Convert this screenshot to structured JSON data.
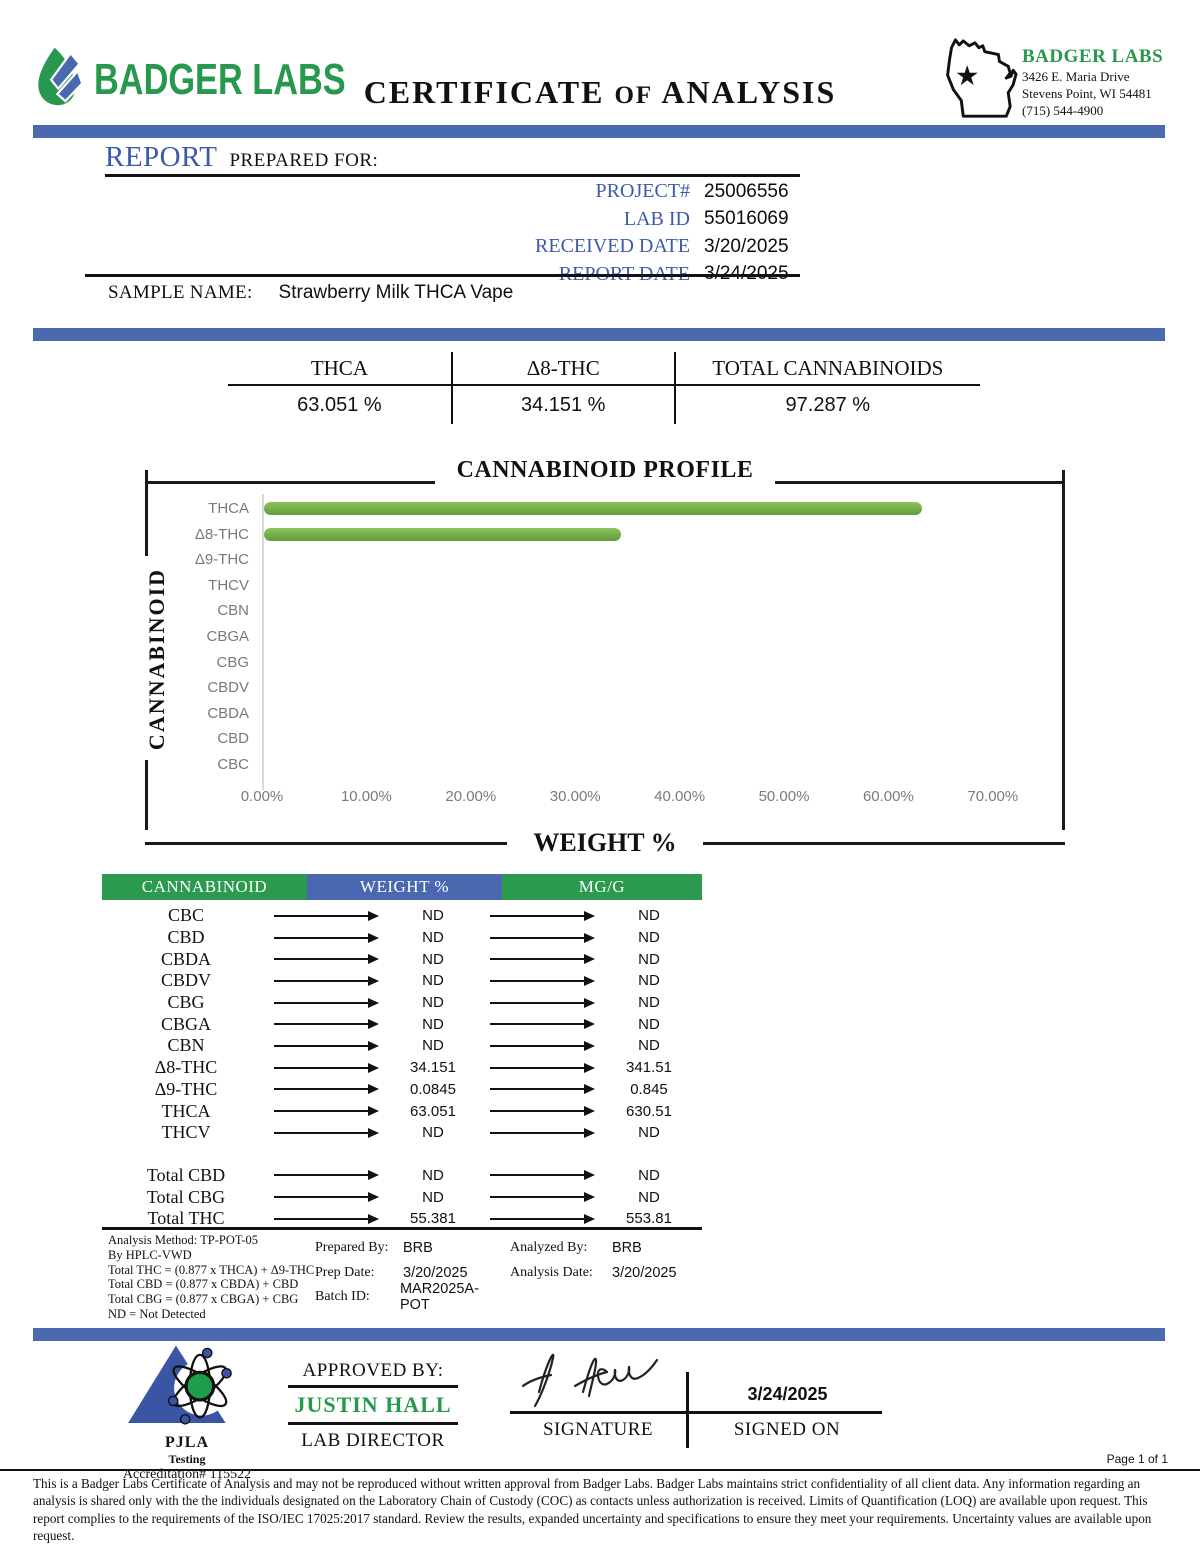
{
  "header": {
    "brand": "BADGER LABS",
    "title_words": [
      "CERTIFICATE",
      "OF",
      "ANALYSIS"
    ],
    "lab_card": {
      "name": "BADGER LABS",
      "address_line1": "3426 E. Maria Drive",
      "address_line2": "Stevens Point, WI 54481",
      "phone": "(715) 544-4900"
    }
  },
  "report": {
    "heading_primary": "REPORT",
    "heading_secondary": "PREPARED FOR:",
    "fields": [
      {
        "label": "PROJECT#",
        "value": "25006556"
      },
      {
        "label": "LAB ID",
        "value": "55016069"
      },
      {
        "label": "RECEIVED DATE",
        "value": "3/20/2025"
      },
      {
        "label": "REPORT DATE",
        "value": "3/24/2025"
      }
    ],
    "sample_label": "SAMPLE NAME:",
    "sample_name": "Strawberry Milk THCA Vape"
  },
  "summary": [
    {
      "label": "THCA",
      "value": "63.051 %"
    },
    {
      "label": "Δ8-THC",
      "value": "34.151 %"
    },
    {
      "label": "TOTAL CANNABINOIDS",
      "value": "97.287 %"
    }
  ],
  "chart": {
    "title": "CANNABINOID PROFILE",
    "y_axis_label": "CANNABINOID",
    "x_axis_label": "WEIGHT %",
    "x_ticks": [
      "0.00%",
      "10.00%",
      "20.00%",
      "30.00%",
      "40.00%",
      "50.00%",
      "60.00%",
      "70.00%"
    ]
  },
  "chart_data": {
    "type": "bar",
    "orientation": "horizontal",
    "title": "CANNABINOID PROFILE",
    "xlabel": "WEIGHT %",
    "ylabel": "CANNABINOID",
    "categories": [
      "THCA",
      "Δ8-THC",
      "Δ9-THC",
      "THCV",
      "CBN",
      "CBGA",
      "CBG",
      "CBDV",
      "CBDA",
      "CBD",
      "CBC"
    ],
    "values": [
      63.051,
      34.151,
      0.0845,
      0,
      0,
      0,
      0,
      0,
      0,
      0,
      0
    ],
    "xlim": [
      0,
      70
    ],
    "grid": false,
    "bar_color": "#72ae47"
  },
  "table": {
    "headers": [
      "CANNABINOID",
      "WEIGHT %",
      "MG/G"
    ],
    "rows": [
      {
        "name": "CBC",
        "weight": "ND",
        "mgg": "ND"
      },
      {
        "name": "CBD",
        "weight": "ND",
        "mgg": "ND"
      },
      {
        "name": "CBDA",
        "weight": "ND",
        "mgg": "ND"
      },
      {
        "name": "CBDV",
        "weight": "ND",
        "mgg": "ND"
      },
      {
        "name": "CBG",
        "weight": "ND",
        "mgg": "ND"
      },
      {
        "name": "CBGA",
        "weight": "ND",
        "mgg": "ND"
      },
      {
        "name": "CBN",
        "weight": "ND",
        "mgg": "ND"
      },
      {
        "name": "Δ8-THC",
        "weight": "34.151",
        "mgg": "341.51"
      },
      {
        "name": "Δ9-THC",
        "weight": "0.0845",
        "mgg": "0.845"
      },
      {
        "name": "THCA",
        "weight": "63.051",
        "mgg": "630.51"
      },
      {
        "name": "THCV",
        "weight": "ND",
        "mgg": "ND"
      }
    ],
    "totals": [
      {
        "name": "Total CBD",
        "weight": "ND",
        "mgg": "ND"
      },
      {
        "name": "Total CBG",
        "weight": "ND",
        "mgg": "ND"
      },
      {
        "name": "Total THC",
        "weight": "55.381",
        "mgg": "553.81"
      }
    ]
  },
  "notes": {
    "method_lines": [
      "Analysis Method: TP-POT-05",
      "By HPLC-VWD",
      "Total THC = (0.877 x  THCA) + Δ9-THC",
      "Total CBD = (0.877 x  CBDA) + CBD",
      "Total CBG = (0.877 x  CBGA) + CBG",
      "ND = Not Detected"
    ],
    "prepared": [
      {
        "label": "Prepared By:",
        "value": "BRB"
      },
      {
        "label": "Prep Date:",
        "value": "3/20/2025"
      },
      {
        "label": "Batch ID:",
        "value": "MAR2025A-POT"
      }
    ],
    "analyzed": [
      {
        "label": "Analyzed By:",
        "value": "BRB"
      },
      {
        "label": "Analysis Date:",
        "value": "3/20/2025"
      }
    ]
  },
  "approval": {
    "approved_by_label": "APPROVED BY:",
    "approver_name": "JUSTIN HALL",
    "approver_title": "LAB DIRECTOR",
    "signature_label": "SIGNATURE",
    "signed_on_label": "SIGNED ON",
    "signed_date": "3/24/2025",
    "accreditation": {
      "org": "PJLA",
      "sub": "Testing",
      "number": "Accreditation# 115522"
    }
  },
  "footer": {
    "page_label": "Page 1 of 1",
    "disclaimer": "This is a Badger Labs Certificate of Analysis and may not be reproduced without written approval from Badger Labs. Badger Labs maintains strict confidentiality of all client data. Any information regarding an analysis is shared only with the the individuals designated on the Laboratory Chain of Custody (COC) as contacts unless authorization is received. Limits of Quantification (LOQ) are available upon request. This report complies to the requirements of the ISO/IEC 17025:2017 standard. Review the results, expanded uncertainty and specifications to ensure they meet your requirements. Uncertainty values are available upon request."
  },
  "colors": {
    "divider_blue": "#4a69ae",
    "brand_green": "#27984e",
    "label_blue": "#3a5ba9",
    "table_header_green": "#2b9a4f",
    "table_header_blue": "#4a68b0",
    "bar_green": "#72ae47"
  }
}
